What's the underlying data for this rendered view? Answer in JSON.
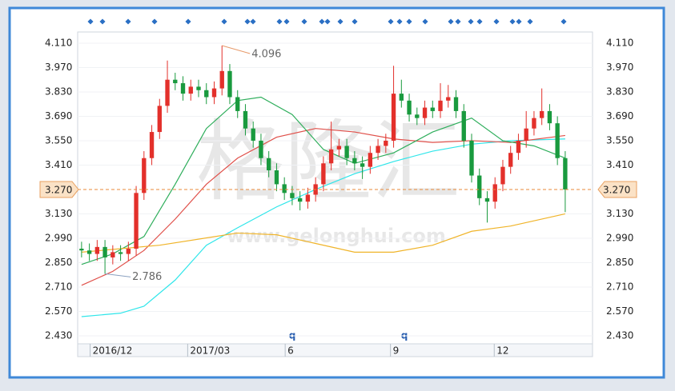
{
  "chart_data": {
    "type": "candlestick",
    "ylim": [
      2.384,
      4.174
    ],
    "yticks": [
      {
        "value": 2.43,
        "label": "2.430"
      },
      {
        "value": 2.57,
        "label": "2.570"
      },
      {
        "value": 2.71,
        "label": "2.710"
      },
      {
        "value": 2.85,
        "label": "2.850"
      },
      {
        "value": 2.99,
        "label": "2.990"
      },
      {
        "value": 3.13,
        "label": "3.130"
      },
      {
        "value": 3.41,
        "label": "3.410"
      },
      {
        "value": 3.55,
        "label": "3.550"
      },
      {
        "value": 3.69,
        "label": "3.690"
      },
      {
        "value": 3.83,
        "label": "3.830"
      },
      {
        "value": 3.97,
        "label": "3.970"
      },
      {
        "value": 4.11,
        "label": "4.110"
      }
    ],
    "xlim": [
      0,
      66
    ],
    "xticks": [
      {
        "value": 1.6,
        "label": "2016/12"
      },
      {
        "value": 14.1,
        "label": "2017/03"
      },
      {
        "value": 26.6,
        "label": "6"
      },
      {
        "value": 40.1,
        "label": "9"
      },
      {
        "value": 53.4,
        "label": "12"
      }
    ],
    "up_color": "#e3302b",
    "down_color": "#199a3e",
    "candles": {
      "open": [
        2.93,
        2.92,
        2.9,
        2.94,
        2.88,
        2.91,
        2.9,
        2.93,
        3.25,
        3.45,
        3.6,
        3.75,
        3.9,
        3.88,
        3.82,
        3.86,
        3.84,
        3.8,
        3.85,
        3.95,
        3.8,
        3.72,
        3.62,
        3.55,
        3.45,
        3.38,
        3.3,
        3.25,
        3.22,
        3.2,
        3.24,
        3.3,
        3.42,
        3.5,
        3.52,
        3.45,
        3.42,
        3.4,
        3.48,
        3.52,
        3.55,
        3.82,
        3.78,
        3.7,
        3.68,
        3.74,
        3.72,
        3.78,
        3.8,
        3.72,
        3.55,
        3.35,
        3.22,
        3.2,
        3.3,
        3.4,
        3.48,
        3.55,
        3.62,
        3.68,
        3.72,
        3.65,
        3.45
      ],
      "high": [
        2.97,
        2.96,
        2.98,
        2.98,
        2.95,
        2.95,
        2.97,
        3.29,
        3.49,
        3.64,
        3.79,
        4.01,
        3.94,
        3.92,
        3.9,
        3.9,
        3.88,
        3.89,
        4.096,
        3.99,
        3.84,
        3.76,
        3.66,
        3.59,
        3.49,
        3.42,
        3.34,
        3.29,
        3.26,
        3.28,
        3.34,
        3.46,
        3.66,
        3.56,
        3.56,
        3.49,
        3.46,
        3.52,
        3.56,
        3.59,
        3.98,
        3.9,
        3.82,
        3.74,
        3.78,
        3.78,
        3.88,
        3.87,
        3.84,
        3.76,
        3.59,
        3.39,
        3.26,
        3.34,
        3.44,
        3.52,
        3.59,
        3.72,
        3.72,
        3.85,
        3.76,
        3.69,
        3.49
      ],
      "low": [
        2.88,
        2.86,
        2.86,
        2.786,
        2.84,
        2.86,
        2.86,
        2.89,
        3.21,
        3.41,
        3.56,
        3.71,
        3.84,
        3.78,
        3.78,
        3.8,
        3.76,
        3.76,
        3.81,
        3.76,
        3.68,
        3.58,
        3.51,
        3.41,
        3.34,
        3.26,
        3.21,
        3.18,
        3.15,
        3.16,
        3.2,
        3.26,
        3.38,
        3.46,
        3.41,
        3.38,
        3.33,
        3.36,
        3.44,
        3.48,
        3.51,
        3.74,
        3.66,
        3.64,
        3.64,
        3.68,
        3.68,
        3.74,
        3.68,
        3.51,
        3.31,
        3.18,
        3.08,
        3.16,
        3.26,
        3.36,
        3.44,
        3.51,
        3.58,
        3.64,
        3.61,
        3.41,
        3.14
      ],
      "close": [
        2.92,
        2.9,
        2.94,
        2.88,
        2.91,
        2.9,
        2.93,
        3.25,
        3.45,
        3.6,
        3.75,
        3.9,
        3.88,
        3.82,
        3.86,
        3.84,
        3.8,
        3.85,
        3.95,
        3.8,
        3.72,
        3.62,
        3.55,
        3.45,
        3.38,
        3.3,
        3.25,
        3.22,
        3.2,
        3.24,
        3.3,
        3.42,
        3.5,
        3.52,
        3.45,
        3.42,
        3.4,
        3.48,
        3.52,
        3.55,
        3.82,
        3.78,
        3.7,
        3.68,
        3.74,
        3.72,
        3.78,
        3.8,
        3.72,
        3.55,
        3.35,
        3.22,
        3.2,
        3.3,
        3.4,
        3.48,
        3.55,
        3.62,
        3.68,
        3.72,
        3.65,
        3.45,
        3.27
      ]
    },
    "series": [
      {
        "color": "#2fe6ea",
        "x": [
          0,
          5,
          8,
          12,
          16,
          20,
          25,
          30,
          35,
          40,
          45,
          50,
          55,
          62
        ],
        "values": [
          2.54,
          2.56,
          2.6,
          2.75,
          2.95,
          3.05,
          3.17,
          3.27,
          3.36,
          3.43,
          3.49,
          3.53,
          3.55,
          3.56
        ]
      },
      {
        "color": "#e0504a",
        "x": [
          0,
          4,
          8,
          12,
          16,
          20,
          25,
          30,
          35,
          40,
          45,
          50,
          55,
          62
        ],
        "values": [
          2.72,
          2.8,
          2.92,
          3.1,
          3.3,
          3.45,
          3.57,
          3.62,
          3.6,
          3.56,
          3.54,
          3.55,
          3.54,
          3.58
        ]
      },
      {
        "color": "#2fae5c",
        "x": [
          0,
          4,
          8,
          12,
          16,
          20,
          23,
          27,
          31,
          35,
          40,
          45,
          50,
          54,
          58,
          62
        ],
        "values": [
          2.84,
          2.9,
          3.0,
          3.3,
          3.62,
          3.78,
          3.8,
          3.7,
          3.5,
          3.42,
          3.48,
          3.6,
          3.68,
          3.55,
          3.52,
          3.45
        ]
      },
      {
        "color": "#f0b429",
        "x": [
          0,
          10,
          20,
          25,
          30,
          35,
          40,
          45,
          50,
          55,
          62
        ],
        "values": [
          2.91,
          2.95,
          3.02,
          3.01,
          2.96,
          2.91,
          2.91,
          2.95,
          3.03,
          3.06,
          3.13
        ]
      }
    ],
    "current": {
      "value": 3.27,
      "label": "3.270"
    },
    "markers": [
      "q",
      "q"
    ],
    "watermark": [
      "格隆汇",
      "www.gelonghui.com"
    ]
  }
}
